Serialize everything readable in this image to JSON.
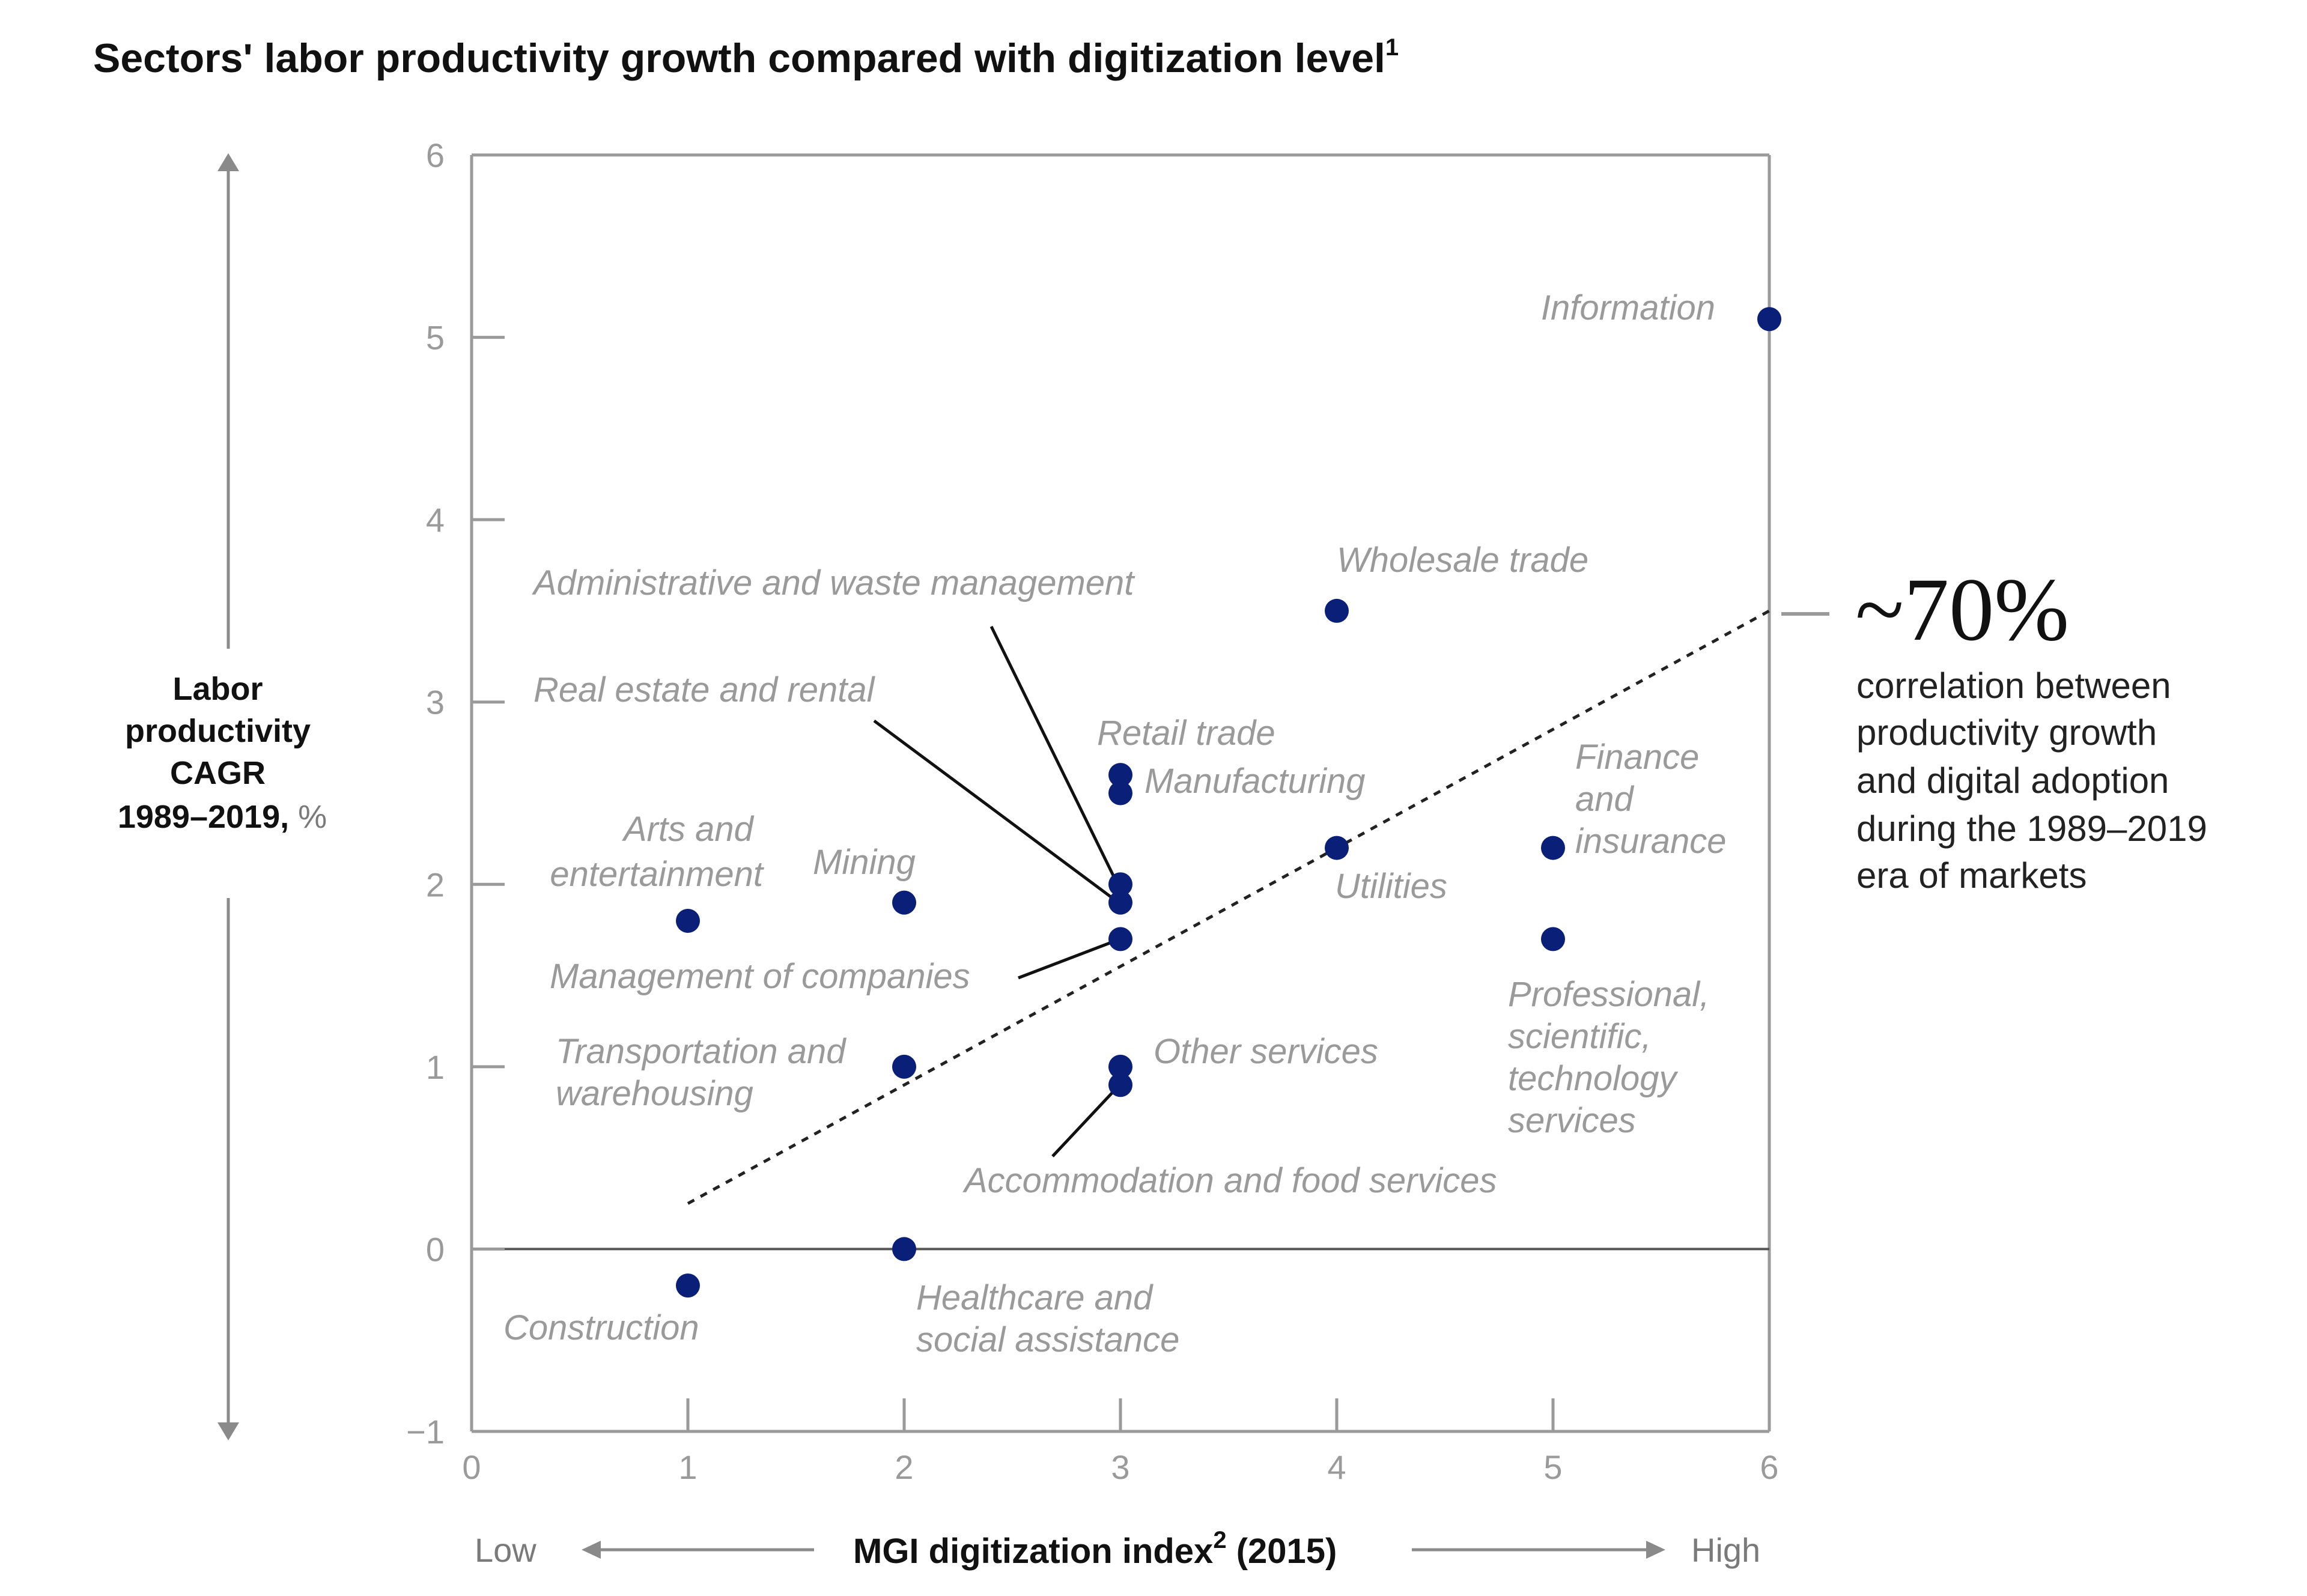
{
  "chart_data": {
    "type": "scatter",
    "title": "Sectors' labor productivity growth compared with digitization level",
    "title_footnote": "1",
    "xlabel": "MGI digitization index",
    "xlabel_footnote": "2",
    "xlabel_suffix": " (2015)",
    "x_low_label": "Low",
    "x_high_label": "High",
    "ylabel_lines": [
      "Labor",
      "productivity",
      "CAGR"
    ],
    "ylabel_year": "1989–2019,",
    "ylabel_unit": " %",
    "xlim": [
      0,
      6
    ],
    "ylim": [
      -1,
      6
    ],
    "x_ticks": [
      "0",
      "1",
      "2",
      "3",
      "4",
      "5",
      "6"
    ],
    "y_ticks": [
      "−1",
      "0",
      "1",
      "2",
      "3",
      "4",
      "5",
      "6"
    ],
    "points": [
      {
        "name": "Information",
        "x": 6,
        "y": 5.1
      },
      {
        "name": "Wholesale trade",
        "x": 4,
        "y": 3.5
      },
      {
        "name": "Retail trade",
        "x": 3,
        "y": 2.6
      },
      {
        "name": "Manufacturing",
        "x": 3,
        "y": 2.5
      },
      {
        "name": "Administrative and waste management",
        "x": 3,
        "y": 2.0
      },
      {
        "name": "Real estate and rental",
        "x": 3,
        "y": 1.9
      },
      {
        "name": "Management of companies",
        "x": 3,
        "y": 1.7
      },
      {
        "name": "Utilities",
        "x": 4,
        "y": 2.2
      },
      {
        "name": "Finance and insurance",
        "x": 5,
        "y": 2.2
      },
      {
        "name": "Professional, scientific, technology services",
        "x": 5,
        "y": 1.7
      },
      {
        "name": "Mining",
        "x": 2,
        "y": 1.9
      },
      {
        "name": "Arts and entertainment",
        "x": 1,
        "y": 1.8
      },
      {
        "name": "Transportation and warehousing",
        "x": 2,
        "y": 1.0
      },
      {
        "name": "Other services",
        "x": 3,
        "y": 1.0
      },
      {
        "name": "Accommodation and food services",
        "x": 3,
        "y": 0.9
      },
      {
        "name": "Healthcare and social assistance",
        "x": 2,
        "y": 0.0
      },
      {
        "name": "Construction",
        "x": 1,
        "y": -0.2
      }
    ],
    "labels": {
      "information": [
        "Information"
      ],
      "wholesale": [
        "Wholesale trade"
      ],
      "retail": [
        "Retail trade"
      ],
      "manufacturing": [
        "Manufacturing"
      ],
      "admin": [
        "Administrative and waste management"
      ],
      "realestate": [
        "Real estate and rental"
      ],
      "management": [
        "Management of companies"
      ],
      "utilities": [
        "Utilities"
      ],
      "finance": [
        "Finance",
        "and",
        "insurance"
      ],
      "professional": [
        "Professional,",
        "scientific,",
        "technology",
        "services"
      ],
      "mining": [
        "Mining"
      ],
      "arts": [
        "Arts and",
        "entertainment"
      ],
      "transport": [
        "Transportation and",
        "warehousing"
      ],
      "other": [
        "Other services"
      ],
      "accommodation": [
        "Accommodation and food services"
      ],
      "healthcare": [
        "Healthcare and",
        "social assistance"
      ],
      "construction": [
        "Construction"
      ]
    },
    "trendline": {
      "style": "dotted",
      "from": {
        "x": 1,
        "y": 0.25
      },
      "to": {
        "x": 6,
        "y": 3.5
      }
    },
    "callout": {
      "value": "~70%",
      "text_lines": [
        "correlation between",
        "productivity growth",
        "and digital adoption",
        "during the 1989–2019",
        "era of markets"
      ]
    }
  }
}
